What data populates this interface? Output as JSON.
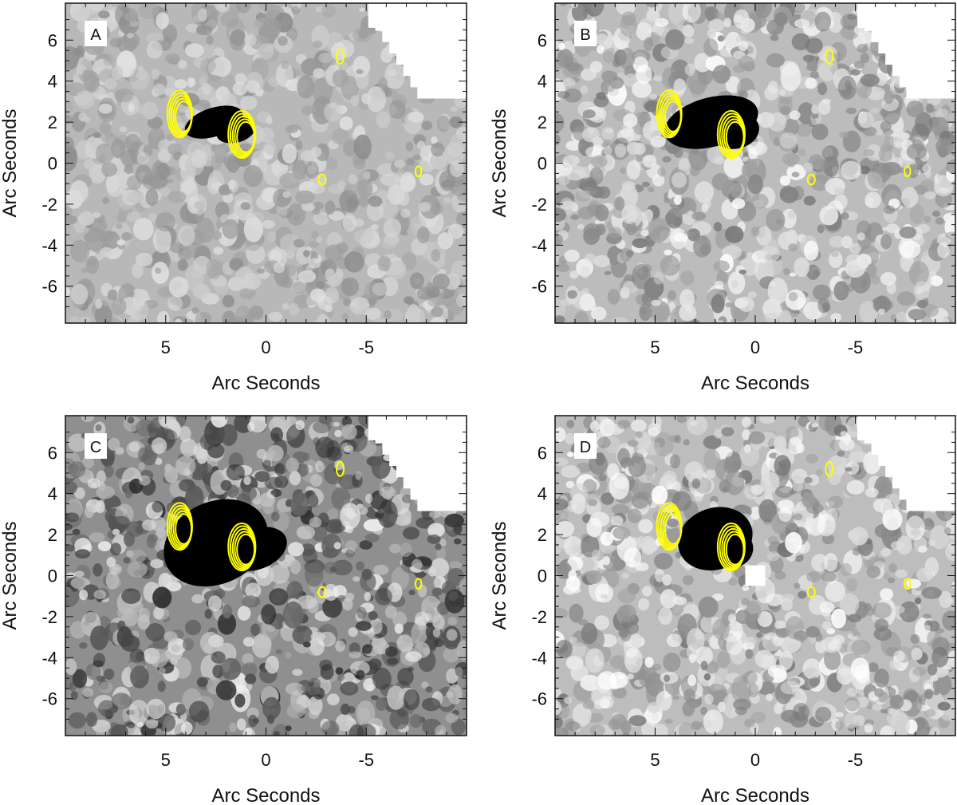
{
  "figure": {
    "panels": [
      {
        "label": "A",
        "xlabel": "Arc Seconds",
        "ylabel": "Arc Seconds",
        "xticks": [
          {
            "value": 5,
            "label": "5"
          },
          {
            "value": 0,
            "label": "0"
          },
          {
            "value": -5,
            "label": "-5"
          }
        ],
        "yticks": [
          {
            "value": 6,
            "label": "6"
          },
          {
            "value": 4,
            "label": "4"
          },
          {
            "value": 2,
            "label": "2"
          },
          {
            "value": 0,
            "label": "0"
          },
          {
            "value": -2,
            "label": "-2"
          },
          {
            "value": -4,
            "label": "-4"
          },
          {
            "value": -6,
            "label": "-6"
          }
        ],
        "background_gray": "#b8b8b8",
        "noise_contrast": 0.35,
        "seed": 11,
        "dark_blobs": [
          {
            "x": 2.6,
            "y": 2.0,
            "rx": 1.5,
            "ry": 0.7,
            "rot": -18
          },
          {
            "x": 1.5,
            "y": 1.6,
            "rx": 1.0,
            "ry": 0.6,
            "rot": -15
          }
        ],
        "white_patches": [
          {
            "x": -5.1,
            "y": 7.8,
            "w": 4.8,
            "h": 1.2
          }
        ]
      },
      {
        "label": "B",
        "xlabel": "Arc Seconds",
        "ylabel": "Arc Seconds",
        "xticks": [
          {
            "value": 5,
            "label": "5"
          },
          {
            "value": 0,
            "label": "0"
          },
          {
            "value": -5,
            "label": "-5"
          }
        ],
        "yticks": [
          {
            "value": 6,
            "label": "6"
          },
          {
            "value": 4,
            "label": "4"
          },
          {
            "value": 2,
            "label": "2"
          },
          {
            "value": 0,
            "label": "0"
          },
          {
            "value": -2,
            "label": "-2"
          },
          {
            "value": -4,
            "label": "-4"
          },
          {
            "value": -6,
            "label": "-6"
          }
        ],
        "background_gray": "#bcbcbc",
        "noise_contrast": 0.55,
        "seed": 23,
        "dark_blobs": [
          {
            "x": 2.2,
            "y": 2.0,
            "rx": 2.4,
            "ry": 1.2,
            "rot": -15
          },
          {
            "x": 1.0,
            "y": 1.6,
            "rx": 1.2,
            "ry": 0.9,
            "rot": -10
          }
        ],
        "white_patches": [
          {
            "x": -5.1,
            "y": 7.8,
            "w": 4.8,
            "h": 1.2
          }
        ]
      },
      {
        "label": "C",
        "xlabel": "Arc Seconds",
        "ylabel": "Arc Seconds",
        "xticks": [
          {
            "value": 5,
            "label": "5"
          },
          {
            "value": 0,
            "label": "0"
          },
          {
            "value": -5,
            "label": "-5"
          }
        ],
        "yticks": [
          {
            "value": 6,
            "label": "6"
          },
          {
            "value": 4,
            "label": "4"
          },
          {
            "value": 2,
            "label": "2"
          },
          {
            "value": 0,
            "label": "0"
          },
          {
            "value": -2,
            "label": "-2"
          },
          {
            "value": -4,
            "label": "-4"
          },
          {
            "value": -6,
            "label": "-6"
          }
        ],
        "background_gray": "#8f8f8f",
        "noise_contrast": 0.8,
        "seed": 37,
        "dark_blobs": [
          {
            "x": 2.5,
            "y": 1.6,
            "rx": 2.7,
            "ry": 2.0,
            "rot": -25
          },
          {
            "x": 0.5,
            "y": 1.3,
            "rx": 1.6,
            "ry": 1.0,
            "rot": -20
          }
        ],
        "white_patches": [
          {
            "x": -5.1,
            "y": 7.8,
            "w": 4.8,
            "h": 1.2
          }
        ]
      },
      {
        "label": "D",
        "xlabel": "Arc Seconds",
        "ylabel": "Arc Seconds",
        "xticks": [
          {
            "value": 5,
            "label": "5"
          },
          {
            "value": 0,
            "label": "0"
          },
          {
            "value": -5,
            "label": "-5"
          }
        ],
        "yticks": [
          {
            "value": 6,
            "label": "6"
          },
          {
            "value": 4,
            "label": "4"
          },
          {
            "value": 2,
            "label": "2"
          },
          {
            "value": 0,
            "label": "0"
          },
          {
            "value": -2,
            "label": "-2"
          },
          {
            "value": -4,
            "label": "-4"
          },
          {
            "value": -6,
            "label": "-6"
          }
        ],
        "background_gray": "#bdbdbd",
        "noise_contrast": 0.6,
        "seed": 53,
        "dark_blobs": [
          {
            "x": 2.0,
            "y": 1.8,
            "rx": 1.9,
            "ry": 1.5,
            "rot": -20
          },
          {
            "x": 1.1,
            "y": 1.3,
            "rx": 1.0,
            "ry": 0.9,
            "rot": -15
          }
        ],
        "white_patches": [
          {
            "x": -5.1,
            "y": 7.8,
            "w": 4.8,
            "h": 1.2
          },
          {
            "x": 0.5,
            "y": 0.5,
            "w": 1.0,
            "h": 1.0
          }
        ]
      }
    ],
    "xlim": [
      10,
      -10
    ],
    "ylim": [
      -7.8,
      7.8
    ],
    "contour_color": "#ffff00",
    "contours": [
      {
        "x": 4.3,
        "y": 2.4,
        "rx": 0.62,
        "ry": 1.15,
        "levels": 5
      },
      {
        "x": 1.2,
        "y": 1.4,
        "rx": 0.68,
        "ry": 1.15,
        "levels": 5
      },
      {
        "x": -3.7,
        "y": 5.2,
        "rx": 0.18,
        "ry": 0.35,
        "levels": 1
      },
      {
        "x": -2.8,
        "y": -0.8,
        "rx": 0.18,
        "ry": 0.25,
        "levels": 1
      },
      {
        "x": -7.6,
        "y": -0.4,
        "rx": 0.15,
        "ry": 0.25,
        "levels": 1
      }
    ]
  }
}
